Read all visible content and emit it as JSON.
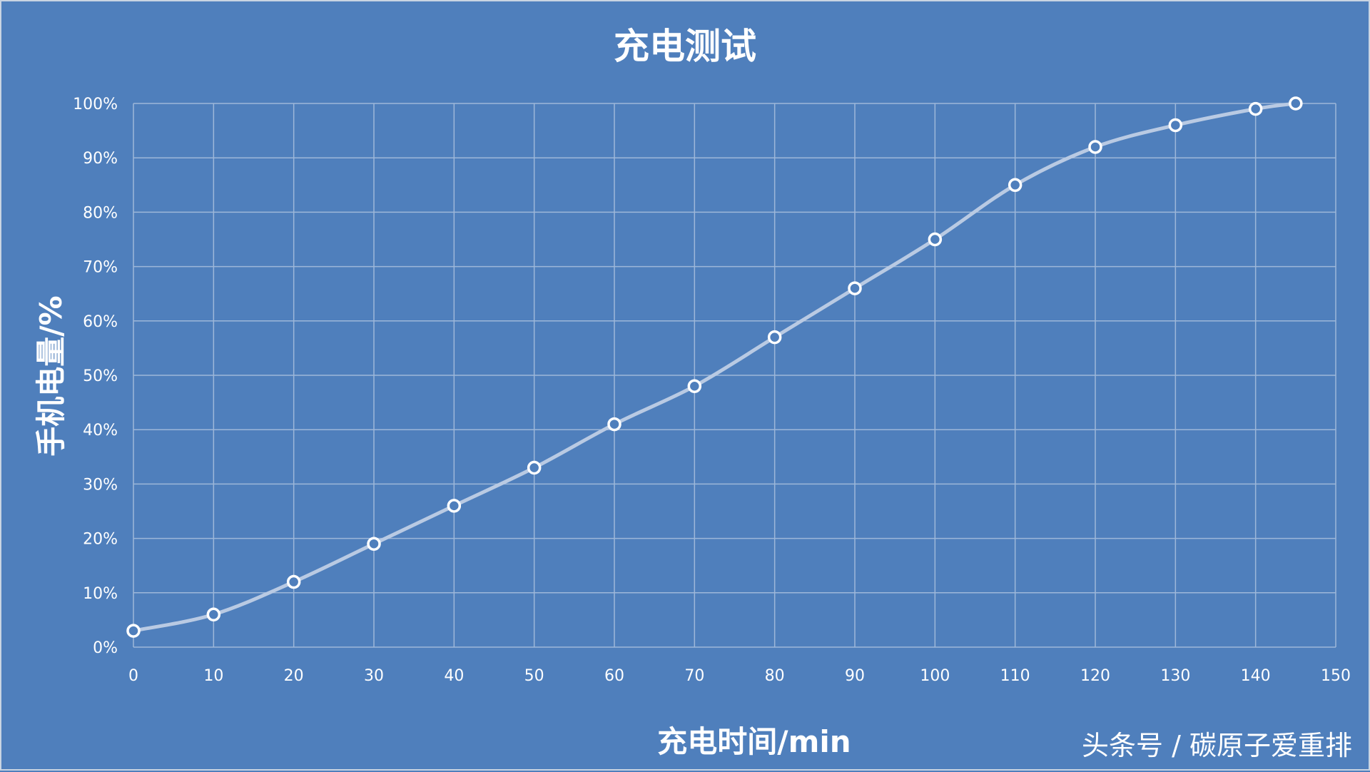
{
  "chart_data": {
    "type": "line",
    "title": "充电测试",
    "xlabel": "充电时间/min",
    "ylabel": "手机电量/%",
    "xlim": [
      0,
      150
    ],
    "ylim": [
      0,
      100
    ],
    "x_ticks": [
      "0",
      "10",
      "20",
      "30",
      "40",
      "50",
      "60",
      "70",
      "80",
      "90",
      "100",
      "110",
      "120",
      "130",
      "140",
      "150"
    ],
    "y_ticks": [
      "0%",
      "10%",
      "20%",
      "30%",
      "40%",
      "50%",
      "60%",
      "70%",
      "80%",
      "90%",
      "100%"
    ],
    "grid": true,
    "smooth": true,
    "series": [
      {
        "x": [
          0,
          10,
          20,
          30,
          40,
          50,
          60,
          70,
          80,
          90,
          100,
          110,
          120,
          130,
          140,
          145
        ],
        "values": [
          3,
          6,
          12,
          19,
          26,
          33,
          41,
          48,
          57,
          66,
          75,
          85,
          92,
          96,
          99,
          100
        ]
      }
    ]
  },
  "watermark": "头条号 / 碳原子爱重排",
  "colors": {
    "background": "#4f7fbc",
    "grid": "#9db7d9",
    "line": "#b9cae3",
    "marker_fill": "#4f7fbc",
    "marker_stroke": "#ffffff",
    "text": "#ffffff"
  }
}
